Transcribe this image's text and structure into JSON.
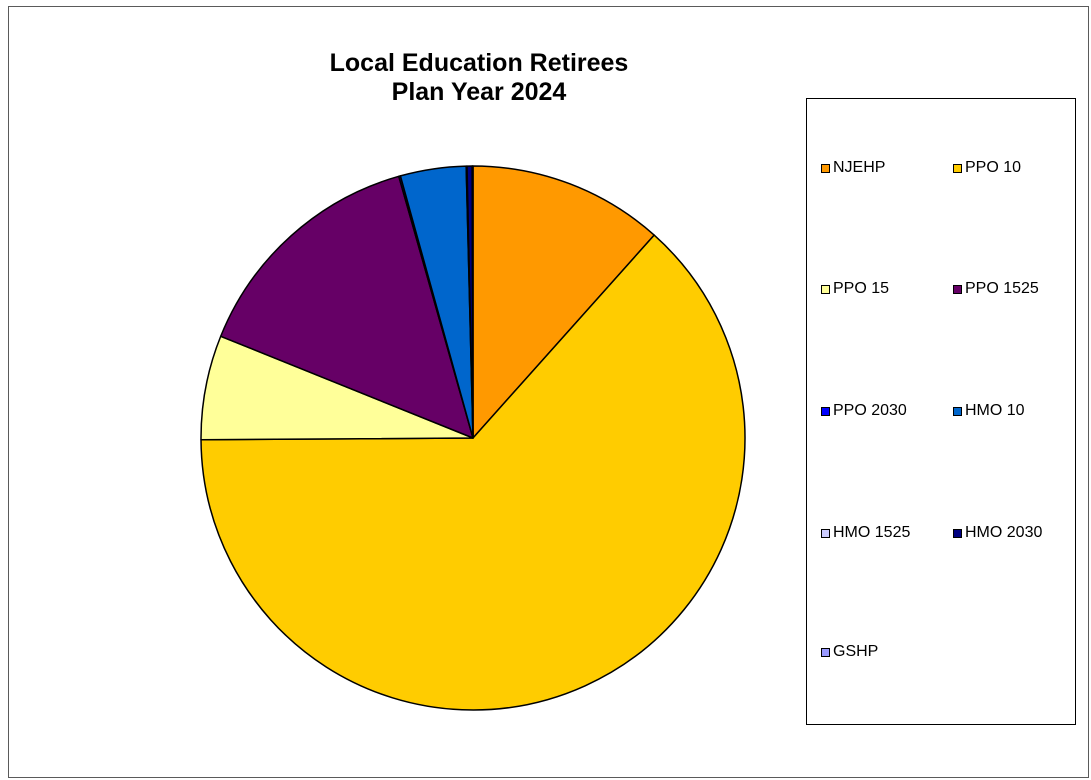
{
  "chart_data": {
    "type": "pie",
    "title": [
      "Local Education Retirees",
      "Plan Year 2024"
    ],
    "start_angle_deg": 90,
    "direction": "clockwise",
    "legend_position": "right",
    "slices": [
      {
        "label": "NJEHP",
        "value": 11.6,
        "color": "#FF9900"
      },
      {
        "label": "PPO 10",
        "value": 63.3,
        "color": "#FFCC00"
      },
      {
        "label": "PPO 15",
        "value": 6.2,
        "color": "#FFFF99"
      },
      {
        "label": "PPO 1525",
        "value": 14.5,
        "color": "#660066"
      },
      {
        "label": "PPO 2030",
        "value": 0.1,
        "color": "#0000FF"
      },
      {
        "label": "HMO 10",
        "value": 3.9,
        "color": "#0066CC"
      },
      {
        "label": "HMO 1525",
        "value": 0.05,
        "color": "#CCCCFF"
      },
      {
        "label": "HMO 2030",
        "value": 0.3,
        "color": "#000080"
      },
      {
        "label": "GSHP",
        "value": 0.05,
        "color": "#9999FF"
      }
    ]
  }
}
